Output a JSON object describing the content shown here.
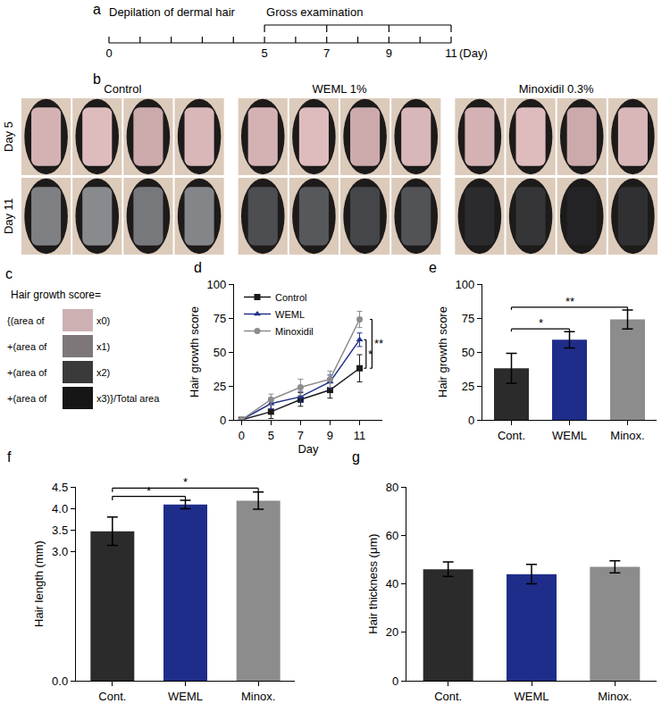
{
  "timeline": {
    "panel": "a",
    "start_label": "Depilation of dermal hair",
    "bracket_label": "Gross examination",
    "days": [
      0,
      1,
      2,
      3,
      4,
      5,
      6,
      7,
      8,
      9,
      10,
      11
    ],
    "tick_labels": [
      0,
      5,
      7,
      9,
      11
    ],
    "bracket": [
      5,
      11
    ],
    "bracket_ticks": [
      5,
      7,
      9,
      11
    ],
    "unit": "(Day)"
  },
  "photos": {
    "panel": "b",
    "groups": [
      "Control",
      "WEML 1%",
      "Minoxidil 0.3%"
    ],
    "rows": [
      "Day 5",
      "Day 11"
    ],
    "per_group": 4
  },
  "formula": {
    "panel": "c",
    "title": "Hair growth score=",
    "rows": [
      {
        "prefix": "{(area of",
        "color": "#cdb0b2",
        "suffix": "x0)"
      },
      {
        "prefix": "+(area of",
        "color": "#7d7779",
        "suffix": "x1)"
      },
      {
        "prefix": "+(area of",
        "color": "#3b3a3b",
        "suffix": "x2)"
      },
      {
        "prefix": "+(area of",
        "color": "#161616",
        "suffix": "x3)}/Total area"
      }
    ]
  },
  "chart_data": [
    {
      "panel": "d",
      "type": "line",
      "xlabel": "Day",
      "ylabel": "Hair growth score",
      "categories": [
        "0",
        "5",
        "7",
        "9",
        "11"
      ],
      "ylim": [
        0,
        100
      ],
      "yticks": [
        0,
        25,
        50,
        75,
        100
      ],
      "grid": false,
      "legend": "upper left",
      "line_style": "solid",
      "series": [
        {
          "name": "Control",
          "color": "#1a1a1a",
          "marker": "square",
          "values": [
            0,
            6,
            15,
            22,
            38
          ],
          "errors": [
            0,
            5,
            5,
            6,
            10
          ]
        },
        {
          "name": "WEML",
          "color": "#23328c",
          "marker": "triangle-up",
          "values": [
            0,
            12,
            17,
            28,
            59
          ],
          "errors": [
            0,
            4,
            4,
            5,
            5
          ]
        },
        {
          "name": "Minoxidil",
          "color": "#8c8c8c",
          "marker": "circle",
          "values": [
            0,
            15,
            24,
            30,
            74
          ],
          "errors": [
            0,
            4,
            6,
            6,
            6
          ]
        }
      ],
      "significance": [
        {
          "from": "Control",
          "to": "WEML",
          "text": "*"
        },
        {
          "from": "Control",
          "to": "Minoxidil",
          "text": "**"
        }
      ]
    },
    {
      "panel": "e",
      "type": "bar",
      "ylabel": "Hair growth score",
      "categories": [
        "Cont.",
        "WEML",
        "Minox."
      ],
      "values": [
        38,
        59,
        74
      ],
      "errors": [
        11,
        6,
        7
      ],
      "colors": [
        "#2b2b2b",
        "#1f2d8a",
        "#8c8c8c"
      ],
      "ylim": [
        0,
        100
      ],
      "yticks": [
        0,
        25,
        50,
        75,
        100
      ],
      "grid": false,
      "significance": [
        {
          "from": "Cont.",
          "to": "WEML",
          "text": "*"
        },
        {
          "from": "Cont.",
          "to": "Minox.",
          "text": "**"
        }
      ]
    },
    {
      "panel": "f",
      "type": "bar",
      "ylabel": "Hair length (mm)",
      "categories": [
        "Cont.",
        "WEML",
        "Minox."
      ],
      "values": [
        3.47,
        4.09,
        4.18
      ],
      "errors": [
        0.33,
        0.1,
        0.2
      ],
      "colors": [
        "#2b2b2b",
        "#1f2d8a",
        "#8c8c8c"
      ],
      "ylim": [
        0,
        4.5
      ],
      "yticks": [
        {
          "value": 0,
          "label": "0.0"
        },
        {
          "value": 3,
          "label": "3.0"
        },
        3.5,
        {
          "value": 4,
          "label": "4.0"
        },
        4.5
      ],
      "grid": false,
      "significance": [
        {
          "from": "Cont.",
          "to": "WEML",
          "text": "*"
        },
        {
          "from": "Cont.",
          "to": "Minox.",
          "text": "*"
        }
      ]
    },
    {
      "panel": "g",
      "type": "bar",
      "ylabel": "Hair thickness (μm)",
      "categories": [
        "Cont.",
        "WEML",
        "Minox."
      ],
      "values": [
        46,
        44,
        47
      ],
      "errors": [
        3,
        4,
        2.5
      ],
      "colors": [
        "#2b2b2b",
        "#1f2d8a",
        "#8c8c8c"
      ],
      "ylim": [
        0,
        80
      ],
      "yticks": [
        0,
        20,
        40,
        60,
        80
      ],
      "grid": false,
      "significance": []
    }
  ]
}
